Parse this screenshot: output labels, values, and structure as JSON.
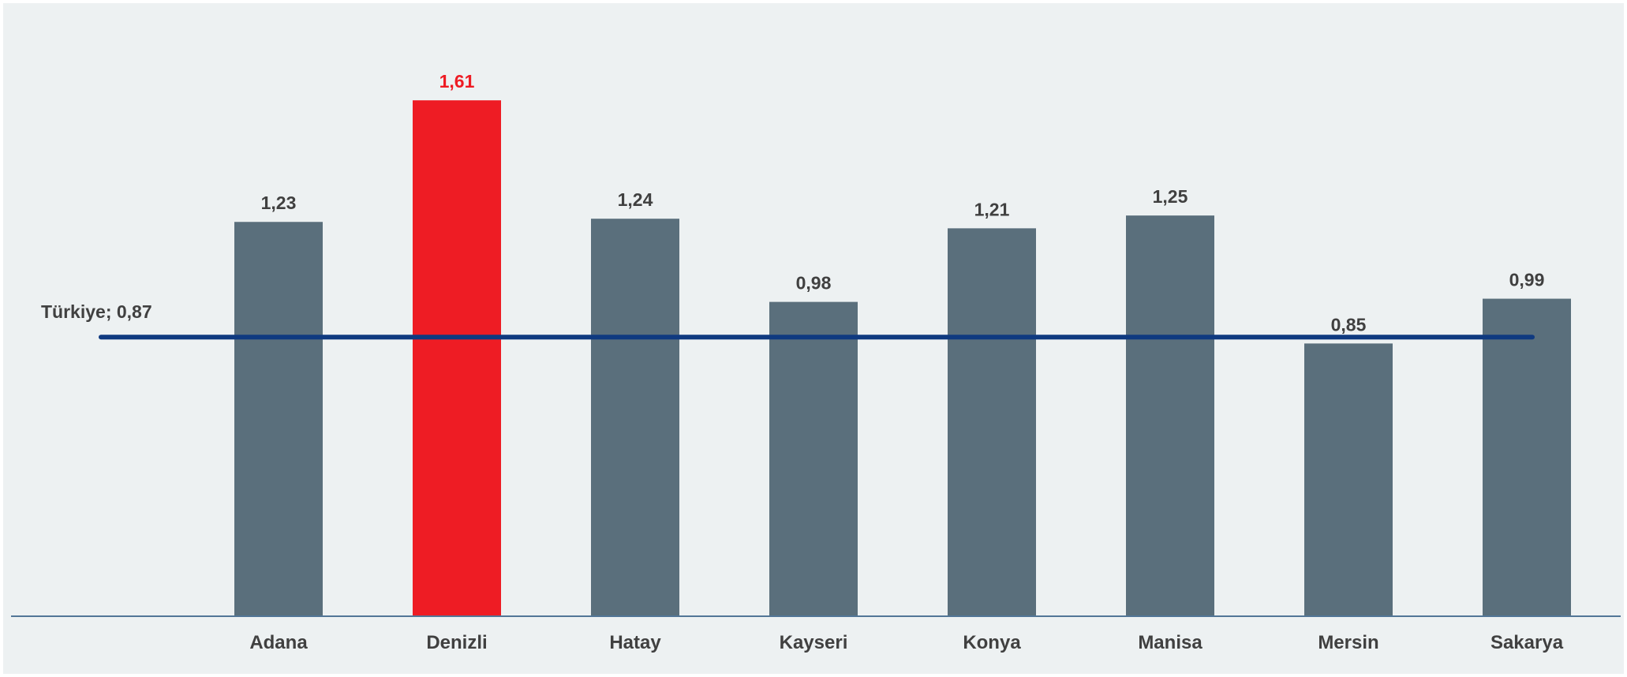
{
  "chart_data": {
    "type": "bar",
    "categories": [
      "Adana",
      "Denizli",
      "Hatay",
      "Kayseri",
      "Konya",
      "Manisa",
      "Mersin",
      "Sakarya"
    ],
    "values": [
      1.23,
      1.61,
      1.24,
      0.98,
      1.21,
      1.25,
      0.85,
      0.99
    ],
    "value_labels": [
      "1,23",
      "1,61",
      "1,24",
      "0,98",
      "1,21",
      "1,25",
      "0,85",
      "0,99"
    ],
    "highlight": "Denizli",
    "reference_line": {
      "label": "Türkiye; 0,87",
      "value": 0.87
    },
    "title": "",
    "xlabel": "",
    "ylabel": "",
    "ylim": [
      0,
      1.82
    ],
    "grid": false,
    "colors": {
      "bar": "#5a6f7c",
      "highlight": "#ee1c24",
      "highlight_label": "#ee1c24",
      "label": "#404040",
      "reference_line": "#0f3a80",
      "axis": "#1f4e79",
      "background": "#edf1f2"
    }
  }
}
